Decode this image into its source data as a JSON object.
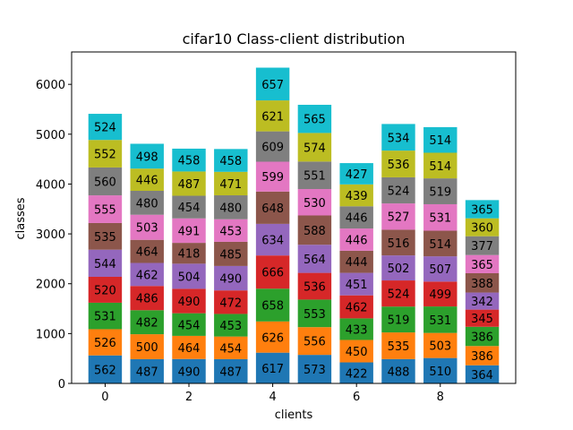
{
  "chart_data": {
    "type": "bar",
    "stacked": true,
    "title": "cifar10 Class-client distribution",
    "xlabel": "clients",
    "ylabel": "classes",
    "x": [
      0,
      1,
      2,
      3,
      4,
      5,
      6,
      7,
      8,
      9
    ],
    "xticks": [
      "0",
      "2",
      "4",
      "6",
      "8"
    ],
    "xtick_values": [
      0,
      2,
      4,
      6,
      8
    ],
    "yticks": [
      "0",
      "1000",
      "2000",
      "3000",
      "4000",
      "5000",
      "6000"
    ],
    "ytick_values": [
      0,
      1000,
      2000,
      3000,
      4000,
      5000,
      6000
    ],
    "xlim": [
      -0.8,
      9.8
    ],
    "ylim": [
      0,
      6650
    ],
    "grid": false,
    "colors": [
      "#1f77b4",
      "#ff7f0e",
      "#2ca02c",
      "#d62728",
      "#9467bd",
      "#8c564b",
      "#e377c2",
      "#7f7f7f",
      "#bcbd22",
      "#17becf"
    ],
    "series": [
      {
        "values": [
          562,
          487,
          490,
          487,
          617,
          573,
          422,
          488,
          510,
          364
        ]
      },
      {
        "values": [
          526,
          500,
          464,
          454,
          626,
          556,
          450,
          535,
          503,
          386
        ]
      },
      {
        "values": [
          531,
          482,
          454,
          453,
          658,
          553,
          433,
          519,
          531,
          386
        ]
      },
      {
        "values": [
          520,
          486,
          490,
          472,
          666,
          536,
          462,
          524,
          499,
          345
        ]
      },
      {
        "values": [
          544,
          462,
          504,
          490,
          634,
          564,
          451,
          502,
          507,
          342
        ]
      },
      {
        "values": [
          535,
          464,
          418,
          485,
          648,
          588,
          444,
          516,
          514,
          388
        ]
      },
      {
        "values": [
          555,
          503,
          491,
          453,
          599,
          530,
          446,
          527,
          531,
          365
        ]
      },
      {
        "values": [
          560,
          480,
          454,
          480,
          609,
          551,
          446,
          524,
          519,
          377
        ]
      },
      {
        "values": [
          552,
          446,
          487,
          471,
          621,
          574,
          439,
          536,
          514,
          360
        ]
      },
      {
        "values": [
          524,
          498,
          458,
          458,
          657,
          565,
          427,
          534,
          514,
          365
        ]
      }
    ]
  }
}
